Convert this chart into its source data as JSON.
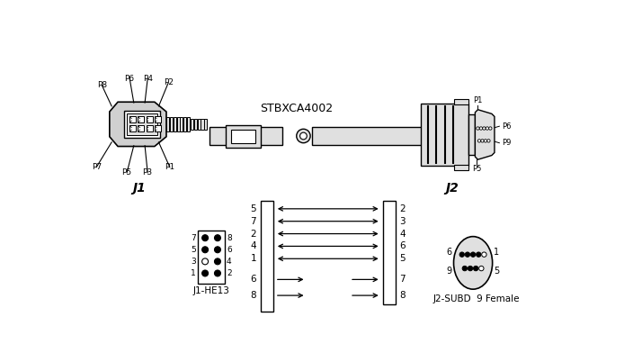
{
  "title": "STBXCA4002",
  "bg_color": "#ffffff",
  "line_color": "#000000",
  "gray_fill": "#d0d0d0",
  "light_gray": "#e0e0e0",
  "j1_label": "J1",
  "j2_label": "J2",
  "j1_he13_label": "J1-HE13",
  "j2_subd_label": "J2-SUBD  9 Female",
  "left_pins": [
    5,
    7,
    2,
    4,
    1,
    6,
    8
  ],
  "right_pins": [
    2,
    3,
    4,
    6,
    5,
    7,
    8
  ]
}
